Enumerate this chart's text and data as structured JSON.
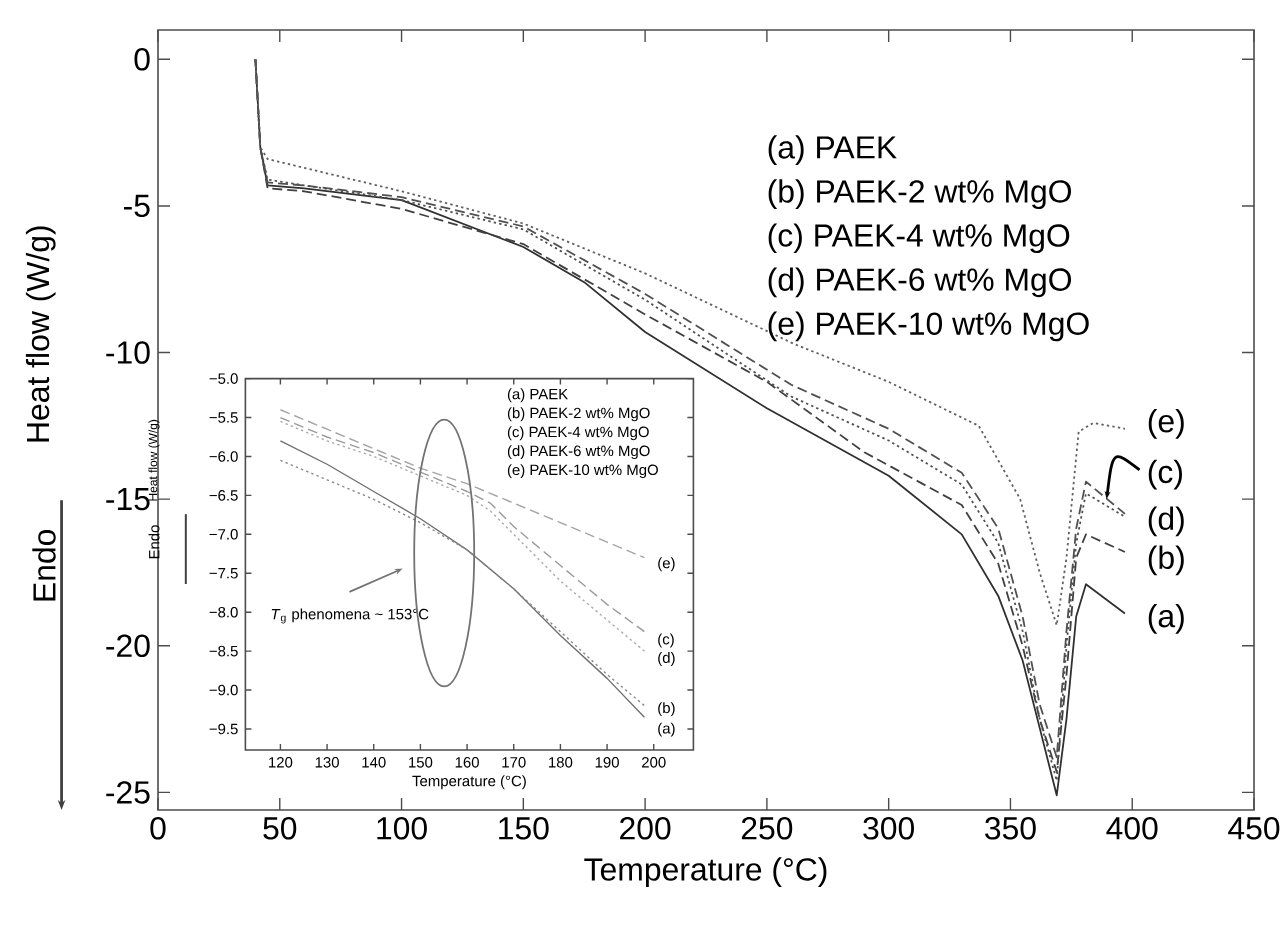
{
  "chart_data": [
    {
      "type": "line",
      "xlabel": "Temperature (°C)",
      "ylabel": "Heat flow (W/g)",
      "xlim": [
        0,
        450
      ],
      "ylim": [
        -25.6,
        1
      ],
      "xticks": [
        0,
        50,
        100,
        150,
        200,
        250,
        300,
        350,
        400,
        450
      ],
      "yticks": [
        0,
        -5,
        -10,
        -15,
        -20,
        -25
      ],
      "series": [
        {
          "color": "#303030",
          "line_style": "solid",
          "x": [
            40,
            42,
            45,
            60,
            100,
            150,
            175,
            200,
            250,
            300,
            330,
            345,
            355,
            362,
            369,
            373,
            377,
            381,
            397
          ],
          "values": [
            0,
            -3,
            -4.3,
            -4.4,
            -4.8,
            -6.4,
            -7.6,
            -9.3,
            -11.9,
            -14.2,
            -16.2,
            -18.3,
            -20.5,
            -22.8,
            -25.1,
            -22.5,
            -19,
            -17.9,
            -18.9
          ]
        },
        {
          "color": "#404040",
          "line_style": "dashed",
          "x": [
            40,
            42,
            45,
            60,
            100,
            150,
            200,
            250,
            290,
            330,
            345,
            355,
            362,
            369,
            373,
            377,
            381,
            397
          ],
          "values": [
            0,
            -3,
            -4.4,
            -4.5,
            -5.1,
            -6.3,
            -8.7,
            -11,
            -13.4,
            -15.2,
            -17.2,
            -20,
            -22.5,
            -24.3,
            -21,
            -17,
            -16.2,
            -16.8
          ]
        },
        {
          "color": "#505050",
          "line_style": "dashed",
          "x": [
            40,
            42,
            45,
            60,
            100,
            150,
            200,
            260,
            300,
            330,
            345,
            355,
            362,
            369,
            373,
            377,
            381,
            397
          ],
          "values": [
            0,
            -3,
            -4.2,
            -4.3,
            -4.7,
            -5.7,
            -8,
            -11.1,
            -12.6,
            -14.1,
            -16,
            -19,
            -22,
            -23.8,
            -19.5,
            -16,
            -14.4,
            -15.5
          ]
        },
        {
          "color": "#505050",
          "line_style": "dotted",
          "x": [
            40,
            42,
            45,
            60,
            100,
            150,
            200,
            260,
            300,
            330,
            345,
            355,
            362,
            369,
            373,
            377,
            381,
            397
          ],
          "values": [
            0,
            -3,
            -4.1,
            -4.3,
            -4.8,
            -5.8,
            -8.2,
            -11.5,
            -13,
            -14.5,
            -16.5,
            -19.5,
            -22.5,
            -24.6,
            -20,
            -16.5,
            -14.8,
            -15.6
          ]
        },
        {
          "color": "#606060",
          "line_style": "dotted",
          "x": [
            40,
            42,
            45,
            60,
            100,
            150,
            200,
            261,
            300,
            337,
            354,
            362,
            369,
            373,
            378,
            384,
            397
          ],
          "values": [
            0,
            -3,
            -3.4,
            -3.7,
            -4.5,
            -5.6,
            -7.3,
            -9.7,
            -11,
            -12.5,
            -15,
            -17.5,
            -19.3,
            -17,
            -12.7,
            -12.4,
            -12.6
          ]
        }
      ],
      "annotations": [
        "(a) PAEK",
        "(b) PAEK-2 wt% MgO",
        "(c) PAEK-4 wt% MgO",
        "(d) PAEK-6 wt% MgO",
        "(e) PAEK-10 wt% MgO",
        "Endo",
        "(e)",
        "(c)",
        "(d)",
        "(b)",
        "(a)"
      ]
    },
    {
      "type": "line",
      "xlabel": "Temperature (°C)",
      "ylabel": "Heat flow (W/g)",
      "xlim": [
        112.5,
        208.5
      ],
      "ylim": [
        -9.77,
        -5.0
      ],
      "xticks": [
        120,
        130,
        140,
        150,
        160,
        170,
        180,
        190,
        200
      ],
      "yticks": [
        {
          "value": -5.0,
          "label": "−5.0"
        },
        {
          "value": -5.5,
          "label": "−5.5"
        },
        {
          "value": -6.0,
          "label": "−6.0"
        },
        {
          "value": -6.5,
          "label": "−6.5"
        },
        {
          "value": -7.0,
          "label": "−7.0"
        },
        {
          "value": -7.5,
          "label": "−7.5"
        },
        {
          "value": -8.0,
          "label": "−8.0"
        },
        {
          "value": -8.5,
          "label": "−8.5"
        },
        {
          "value": -9.0,
          "label": "−9.0"
        },
        {
          "value": -9.5,
          "label": "−9.5"
        }
      ],
      "series": [
        {
          "color": "#707070",
          "line_style": "solid",
          "x": [
            120,
            130,
            140,
            150,
            160,
            170,
            180,
            190,
            198
          ],
          "values": [
            -5.8,
            -6.1,
            -6.45,
            -6.8,
            -7.2,
            -7.7,
            -8.3,
            -8.85,
            -9.35
          ]
        },
        {
          "color": "#8a8a8a",
          "line_style": "dotted",
          "x": [
            120,
            130,
            140,
            150,
            160,
            170,
            180,
            190,
            198
          ],
          "values": [
            -6.05,
            -6.3,
            -6.55,
            -6.85,
            -7.2,
            -7.7,
            -8.25,
            -8.8,
            -9.2
          ]
        },
        {
          "color": "#9a9a9a",
          "line_style": "dashed",
          "x": [
            120,
            130,
            140,
            150,
            160,
            165,
            170,
            180,
            190,
            198
          ],
          "values": [
            -5.5,
            -5.75,
            -5.95,
            -6.2,
            -6.45,
            -6.6,
            -6.9,
            -7.4,
            -7.9,
            -8.25
          ]
        },
        {
          "color": "#aaaaaa",
          "line_style": "dotted",
          "x": [
            120,
            130,
            140,
            150,
            160,
            165,
            170,
            180,
            190,
            198
          ],
          "values": [
            -5.55,
            -5.8,
            -6.0,
            -6.25,
            -6.5,
            -6.7,
            -7.0,
            -7.6,
            -8.1,
            -8.5
          ]
        },
        {
          "color": "#a5a5a5",
          "line_style": "dashed",
          "x": [
            120,
            130,
            140,
            150,
            160,
            170,
            180,
            190,
            198
          ],
          "values": [
            -5.4,
            -5.65,
            -5.9,
            -6.15,
            -6.35,
            -6.6,
            -6.85,
            -7.1,
            -7.3
          ]
        }
      ],
      "annotations": [
        "(a) PAEK",
        "(b) PAEK-2 wt% MgO",
        "(c) PAEK-4 wt% MgO",
        "(d) PAEK-6 wt% MgO",
        "(e) PAEK-10 wt% MgO",
        "*T*$_{g}$ phenomena ~ 153°C",
        "Endo",
        "(e)",
        "(c)",
        "(d)",
        "(b)",
        "(a)"
      ]
    }
  ]
}
